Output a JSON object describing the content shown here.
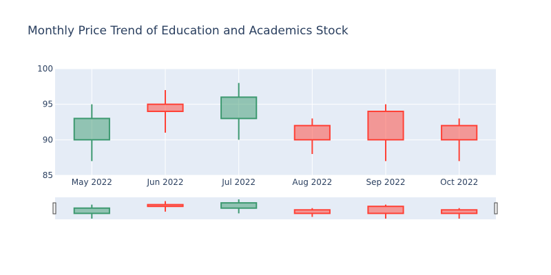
{
  "chart_data": {
    "type": "candlestick",
    "title": "Monthly Price Trend of Education and Academics Stock",
    "xlabel": "",
    "ylabel": "",
    "categories": [
      "May 2022",
      "Jun 2022",
      "Jul 2022",
      "Aug 2022",
      "Sep 2022",
      "Oct 2022"
    ],
    "open": [
      90,
      95,
      93,
      92,
      94,
      92
    ],
    "high": [
      95,
      97,
      98,
      93,
      95,
      93
    ],
    "low": [
      87,
      91,
      90,
      88,
      87,
      87
    ],
    "close": [
      93,
      94,
      96,
      90,
      90,
      90
    ],
    "ylim": [
      85,
      100
    ],
    "yticks": [
      85,
      90,
      95,
      100
    ],
    "grid": true,
    "legend": "none",
    "rangeslider": true,
    "colors": {
      "increasing_line": "#3d9970",
      "increasing_fill": "rgba(61,153,112,0.5)",
      "decreasing_line": "#ff4136",
      "decreasing_fill": "rgba(255,65,54,0.5)",
      "plot_bg": "#e5ecf6",
      "grid": "#ffffff",
      "text": "#2a3f5f"
    }
  }
}
